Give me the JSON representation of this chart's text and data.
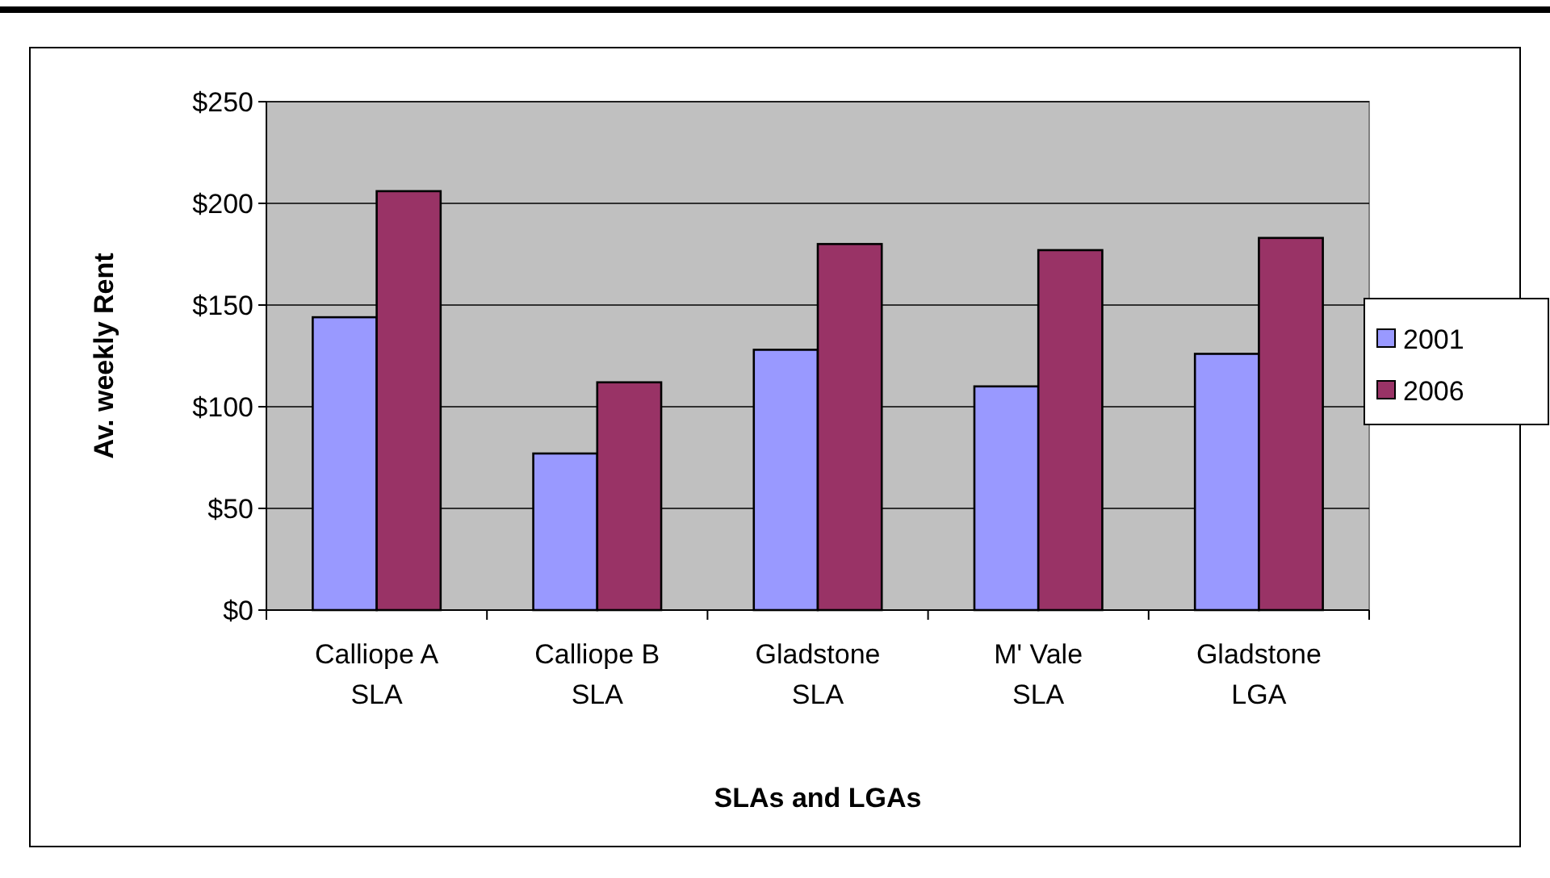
{
  "chart_data": {
    "type": "bar",
    "xlabel": "SLAs and LGAs",
    "ylabel": "Av. weekly Rent",
    "categories": [
      "Calliope A SLA",
      "Calliope B SLA",
      "Gladstone SLA",
      "M' Vale SLA",
      "Gladstone LGA"
    ],
    "series": [
      {
        "name": "2001",
        "color": "#9999ff",
        "values": [
          144,
          77,
          128,
          110,
          126
        ]
      },
      {
        "name": "2006",
        "color": "#993366",
        "values": [
          206,
          112,
          180,
          177,
          183
        ]
      }
    ],
    "ylim": [
      0,
      250
    ],
    "yticks": [
      {
        "value": 0,
        "label": "$0"
      },
      {
        "value": 50,
        "label": "$50"
      },
      {
        "value": 100,
        "label": "$100"
      },
      {
        "value": 150,
        "label": "$150"
      },
      {
        "value": 200,
        "label": "$200"
      },
      {
        "value": 250,
        "label": "$250"
      }
    ],
    "grid": "y",
    "legend": "right"
  }
}
